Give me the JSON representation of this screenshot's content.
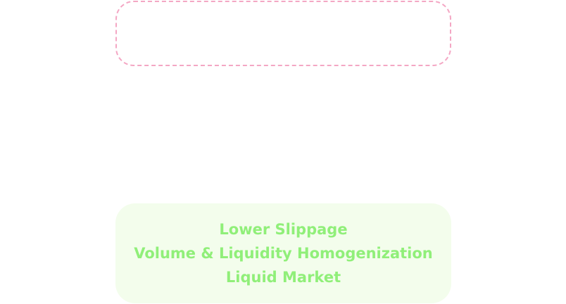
{
  "benefits": {
    "lines": [
      "Lower Slippage",
      "Volume & Liquidity Homogenization",
      "Liquid Market"
    ]
  },
  "colors": {
    "dashed_border": "#f4a7c4",
    "card_background": "#f3fdec",
    "benefit_text": "#90ef79"
  }
}
